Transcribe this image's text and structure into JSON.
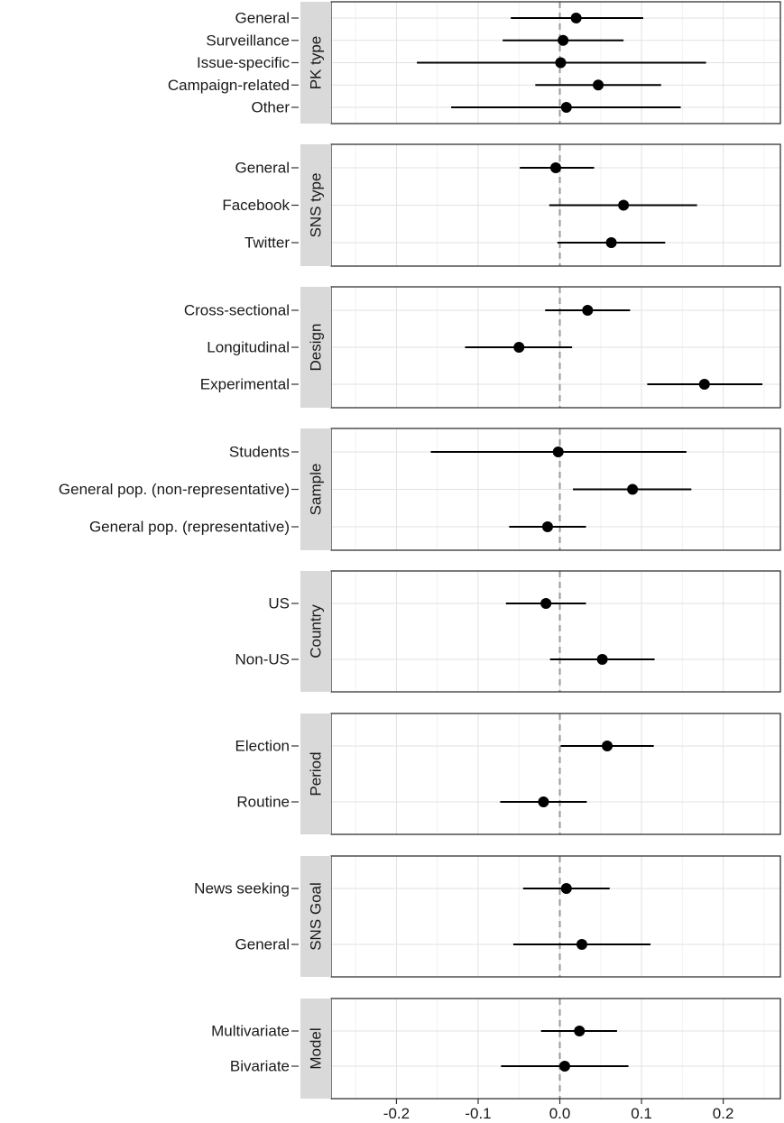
{
  "chart_data": {
    "type": "scatter",
    "subtype": "forest-plot (point estimates with confidence intervals), faceted",
    "xlim": [
      -0.28,
      0.27
    ],
    "x_ticks": [
      -0.2,
      -0.1,
      0.0,
      0.1,
      0.2
    ],
    "x_tick_labels": [
      "-0.2",
      "-0.1",
      "0.0",
      "0.1",
      "0.2"
    ],
    "reference_line": {
      "x": 0,
      "style": "dashed",
      "color": "#999999"
    },
    "grid": true,
    "marker_color": "#000000",
    "panels": [
      {
        "label": "PK type",
        "rows": [
          {
            "label": "General",
            "est": 0.02,
            "lo": -0.06,
            "hi": 0.102
          },
          {
            "label": "Surveillance",
            "est": 0.004,
            "lo": -0.07,
            "hi": 0.078
          },
          {
            "label": "Issue-specific",
            "est": 0.001,
            "lo": -0.175,
            "hi": 0.179
          },
          {
            "label": "Campaign-related",
            "est": 0.047,
            "lo": -0.03,
            "hi": 0.124
          },
          {
            "label": "Other",
            "est": 0.008,
            "lo": -0.133,
            "hi": 0.148
          }
        ]
      },
      {
        "label": "SNS type",
        "rows": [
          {
            "label": "General",
            "est": -0.005,
            "lo": -0.049,
            "hi": 0.042
          },
          {
            "label": "Facebook",
            "est": 0.078,
            "lo": -0.013,
            "hi": 0.168
          },
          {
            "label": "Twitter",
            "est": 0.063,
            "lo": -0.003,
            "hi": 0.129
          }
        ]
      },
      {
        "label": "Design",
        "rows": [
          {
            "label": "Cross-sectional",
            "est": 0.034,
            "lo": -0.018,
            "hi": 0.086
          },
          {
            "label": "Longitudinal",
            "est": -0.05,
            "lo": -0.116,
            "hi": 0.015
          },
          {
            "label": "Experimental",
            "est": 0.177,
            "lo": 0.107,
            "hi": 0.248
          }
        ]
      },
      {
        "label": "Sample",
        "rows": [
          {
            "label": "Students",
            "est": -0.002,
            "lo": -0.158,
            "hi": 0.155
          },
          {
            "label": "General pop. (non-representative)",
            "est": 0.089,
            "lo": 0.016,
            "hi": 0.161
          },
          {
            "label": "General pop. (representative)",
            "est": -0.015,
            "lo": -0.062,
            "hi": 0.032
          }
        ]
      },
      {
        "label": "Country",
        "rows": [
          {
            "label": "US",
            "est": -0.017,
            "lo": -0.066,
            "hi": 0.032
          },
          {
            "label": "Non-US",
            "est": 0.052,
            "lo": -0.012,
            "hi": 0.116
          }
        ]
      },
      {
        "label": "Period",
        "rows": [
          {
            "label": "Election",
            "est": 0.058,
            "lo": 0.001,
            "hi": 0.115
          },
          {
            "label": "Routine",
            "est": -0.02,
            "lo": -0.073,
            "hi": 0.033
          }
        ]
      },
      {
        "label": "SNS Goal",
        "rows": [
          {
            "label": "News seeking",
            "est": 0.008,
            "lo": -0.045,
            "hi": 0.061
          },
          {
            "label": "General",
            "est": 0.027,
            "lo": -0.057,
            "hi": 0.111
          }
        ]
      },
      {
        "label": "Model",
        "rows": [
          {
            "label": "Multivariate",
            "est": 0.024,
            "lo": -0.023,
            "hi": 0.07
          },
          {
            "label": "Bivariate",
            "est": 0.006,
            "lo": -0.072,
            "hi": 0.084
          }
        ]
      }
    ]
  }
}
